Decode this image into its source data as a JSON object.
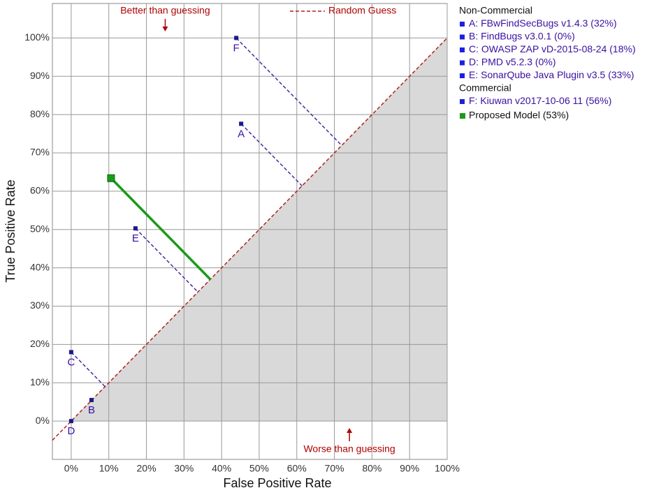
{
  "chart_data": {
    "type": "scatter",
    "xlabel": "False Positive Rate",
    "ylabel": "True Positive Rate",
    "xlim": [
      -5,
      100
    ],
    "ylim": [
      -10,
      109
    ],
    "xticks": [
      {
        "value": 0,
        "label": "0%"
      },
      {
        "value": 10,
        "label": "10%"
      },
      {
        "value": 20,
        "label": "20%"
      },
      {
        "value": 30,
        "label": "30%"
      },
      {
        "value": 40,
        "label": "40%"
      },
      {
        "value": 50,
        "label": "50%"
      },
      {
        "value": 60,
        "label": "60%"
      },
      {
        "value": 70,
        "label": "70%"
      },
      {
        "value": 80,
        "label": "80%"
      },
      {
        "value": 90,
        "label": "90%"
      },
      {
        "value": 100,
        "label": "100%"
      }
    ],
    "yticks": [
      {
        "value": 0,
        "label": "0%"
      },
      {
        "value": 10,
        "label": "10%"
      },
      {
        "value": 20,
        "label": "20%"
      },
      {
        "value": 30,
        "label": "30%"
      },
      {
        "value": 40,
        "label": "40%"
      },
      {
        "value": 50,
        "label": "50%"
      },
      {
        "value": 60,
        "label": "60%"
      },
      {
        "value": 70,
        "label": "70%"
      },
      {
        "value": 80,
        "label": "80%"
      },
      {
        "value": 90,
        "label": "90%"
      },
      {
        "value": 100,
        "label": "100%"
      }
    ],
    "grid": true,
    "diagonal": {
      "name": "Random Guess",
      "color": "#b22222"
    },
    "annotations": {
      "above": "Better than guessing",
      "below": "Worse than guessing"
    },
    "groups": [
      {
        "title": "Non-Commercial",
        "series": [
          {
            "label": "A",
            "name": "A: FBwFindSecBugs v1.4.3 (32%)",
            "color": "#1a1a8c",
            "x": [
              45.2
            ],
            "values": [
              77.6
            ]
          },
          {
            "label": "B",
            "name": "B: FindBugs v3.0.1 (0%)",
            "color": "#1a1a8c",
            "x": [
              5.4
            ],
            "values": [
              5.5
            ]
          },
          {
            "label": "C",
            "name": "C: OWASP ZAP vD-2015-08-24 (18%)",
            "color": "#1a1a8c",
            "x": [
              0
            ],
            "values": [
              18
            ]
          },
          {
            "label": "D",
            "name": "D: PMD v5.2.3 (0%)",
            "color": "#1a1a8c",
            "x": [
              0
            ],
            "values": [
              0
            ]
          },
          {
            "label": "E",
            "name": "E: SonarQube Java Plugin v3.5 (33%)",
            "color": "#1a1a8c",
            "x": [
              17.1
            ],
            "values": [
              50.3
            ]
          }
        ]
      },
      {
        "title": "Commercial",
        "series": [
          {
            "label": "F",
            "name": "F: Kiuwan v2017-10-06 11 (56%)",
            "color": "#1a1a8c",
            "x": [
              43.9
            ],
            "values": [
              100
            ]
          }
        ]
      }
    ],
    "proposed": {
      "name": "Proposed Model (53%)",
      "color": "#1a9a1a",
      "x": [
        10.6
      ],
      "values": [
        63.4
      ]
    }
  }
}
